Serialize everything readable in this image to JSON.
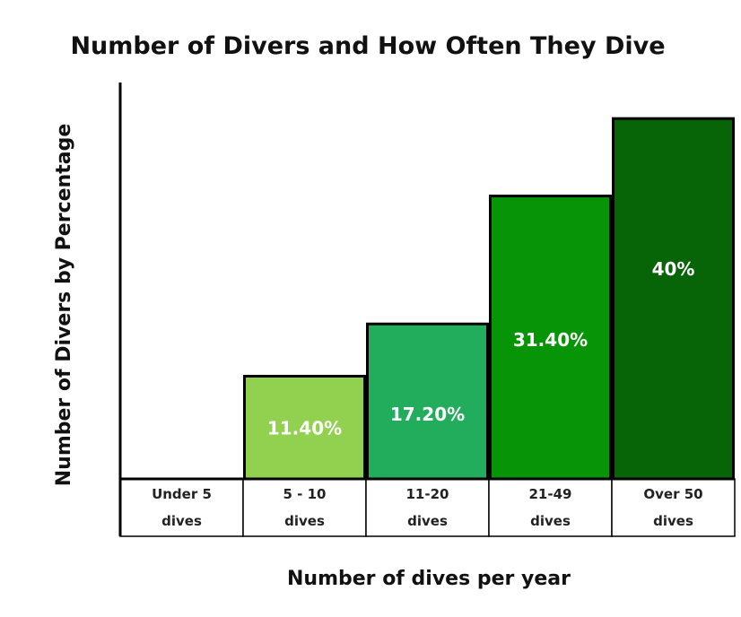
{
  "chart_data": {
    "type": "bar",
    "title": "Number of Divers and How Often They Dive",
    "ylabel": "Number of Divers by Percentage",
    "xlabel": "Number of dives per year",
    "categories": [
      [
        "Under 5",
        "dives"
      ],
      [
        "5 - 10",
        "dives"
      ],
      [
        "11-20",
        "dives"
      ],
      [
        "21-49",
        "dives"
      ],
      [
        "Over 50",
        "dives"
      ]
    ],
    "values": [
      0,
      11.4,
      17.2,
      31.4,
      40
    ],
    "data_labels": [
      "",
      "11.40%",
      "17.20%",
      "31.40%",
      "40%"
    ],
    "colors": [
      "#ffffff",
      "#92d050",
      "#21ad5b",
      "#079407",
      "#076407"
    ],
    "ylim": [
      0,
      44
    ],
    "grid": false,
    "legend": "none"
  }
}
